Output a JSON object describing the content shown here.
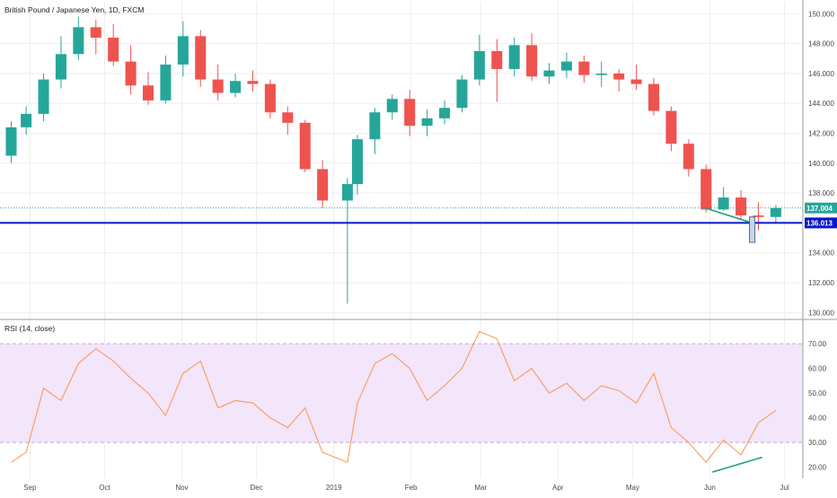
{
  "chart_data": [
    {
      "type": "candlestick",
      "title": "British Pound / Japanese Yen, 1D, FXCM",
      "ylim": [
        129.6,
        150.8
      ],
      "y_ticks": [
        "130.000",
        "132.000",
        "134.000",
        "136.000",
        "138.000",
        "140.000",
        "142.000",
        "144.000",
        "146.000",
        "148.000",
        "150.000"
      ],
      "x_tick_labels": [
        "Sep",
        "Oct",
        "Nov",
        "Dec",
        "2019",
        "Feb",
        "Mar",
        "Apr",
        "May",
        "Jun",
        "Jul"
      ],
      "grid": true,
      "colors": {
        "up": "#26a69a",
        "down": "#ef5350",
        "support": "#0b16c9",
        "divergence": "#1ba37c",
        "last_price": "#26a69a",
        "support_tag": "#0b16c9"
      },
      "last_price": {
        "value": 137.0,
        "label": "137.004"
      },
      "support_level": {
        "value": 136.0,
        "label": "136.013"
      },
      "series": [
        {
          "name": "GBPJPY",
          "x": [
            "2018-08-21",
            "2018-08-27",
            "2018-09-03",
            "2018-09-10",
            "2018-09-17",
            "2018-09-24",
            "2018-10-01",
            "2018-10-08",
            "2018-10-15",
            "2018-10-22",
            "2018-10-29",
            "2018-11-05",
            "2018-11-12",
            "2018-11-19",
            "2018-11-26",
            "2018-12-03",
            "2018-12-10",
            "2018-12-17",
            "2018-12-24",
            "2019-01-03",
            "2019-01-07",
            "2019-01-14",
            "2019-01-21",
            "2019-01-28",
            "2019-02-04",
            "2019-02-11",
            "2019-02-18",
            "2019-02-25",
            "2019-03-04",
            "2019-03-11",
            "2019-03-18",
            "2019-03-25",
            "2019-04-01",
            "2019-04-08",
            "2019-04-15",
            "2019-04-22",
            "2019-04-29",
            "2019-05-06",
            "2019-05-13",
            "2019-05-20",
            "2019-05-27",
            "2019-06-03",
            "2019-06-10",
            "2019-06-17",
            "2019-06-24"
          ],
          "open": [
            140.5,
            142.4,
            143.3,
            145.6,
            147.3,
            149.1,
            148.4,
            146.8,
            145.2,
            144.2,
            146.6,
            148.5,
            145.6,
            144.7,
            145.5,
            145.3,
            143.4,
            142.7,
            139.6,
            137.5,
            138.6,
            141.6,
            143.4,
            144.3,
            142.5,
            143.0,
            143.7,
            145.6,
            147.5,
            146.3,
            147.9,
            145.8,
            146.2,
            146.8,
            145.9,
            146.0,
            145.6,
            145.3,
            143.5,
            141.3,
            139.6,
            136.9,
            137.7,
            136.5,
            136.4
          ],
          "high": [
            142.8,
            143.8,
            146.0,
            148.5,
            149.8,
            149.6,
            149.3,
            147.9,
            146.1,
            147.2,
            149.5,
            148.9,
            146.6,
            146.0,
            146.2,
            145.6,
            143.8,
            142.9,
            140.2,
            139.0,
            141.9,
            143.7,
            144.6,
            144.9,
            143.6,
            144.2,
            145.9,
            148.6,
            148.3,
            148.4,
            148.7,
            146.7,
            147.4,
            147.2,
            146.8,
            146.3,
            146.6,
            145.7,
            143.8,
            141.6,
            139.9,
            138.4,
            138.2,
            137.4,
            137.2
          ],
          "low": [
            140.0,
            141.9,
            142.8,
            145.0,
            146.9,
            147.3,
            146.5,
            144.6,
            143.9,
            144.0,
            145.8,
            145.1,
            144.2,
            144.4,
            144.8,
            143.0,
            141.9,
            139.4,
            137.0,
            130.6,
            137.9,
            140.6,
            142.9,
            141.8,
            141.8,
            142.6,
            143.4,
            145.2,
            144.1,
            145.8,
            145.5,
            145.3,
            145.7,
            145.4,
            145.1,
            144.8,
            144.9,
            143.2,
            140.8,
            139.1,
            136.7,
            136.8,
            136.3,
            135.5,
            136.0
          ],
          "close": [
            142.4,
            143.3,
            145.6,
            147.3,
            149.1,
            148.4,
            146.8,
            145.2,
            144.2,
            146.6,
            148.5,
            145.6,
            144.7,
            145.5,
            145.3,
            143.4,
            142.7,
            139.6,
            137.5,
            138.6,
            141.6,
            143.4,
            144.3,
            142.5,
            143.0,
            143.7,
            145.6,
            147.5,
            146.3,
            147.9,
            145.8,
            146.2,
            146.8,
            145.9,
            146.0,
            145.6,
            145.3,
            143.5,
            141.3,
            139.6,
            136.9,
            137.7,
            136.5,
            136.4,
            137.0
          ]
        }
      ]
    },
    {
      "type": "line",
      "title": "RSI (14, close)",
      "ylim": [
        15.5,
        79.5
      ],
      "y_ticks": [
        "20.00",
        "30.00",
        "40.00",
        "50.00",
        "60.00",
        "70.00"
      ],
      "band": [
        30,
        70
      ],
      "colors": {
        "line": "#f7954f",
        "band_fill": "#f3e5fa",
        "band_edge": "#c9a3d8",
        "divergence": "#1ba37c"
      },
      "series": [
        {
          "name": "RSI",
          "x": [
            "2018-08-21",
            "2018-08-27",
            "2018-09-03",
            "2018-09-10",
            "2018-09-17",
            "2018-09-24",
            "2018-10-01",
            "2018-10-08",
            "2018-10-15",
            "2018-10-22",
            "2018-10-29",
            "2018-11-05",
            "2018-11-12",
            "2018-11-19",
            "2018-11-26",
            "2018-12-03",
            "2018-12-10",
            "2018-12-17",
            "2018-12-24",
            "2019-01-03",
            "2019-01-07",
            "2019-01-14",
            "2019-01-21",
            "2019-01-28",
            "2019-02-04",
            "2019-02-11",
            "2019-02-18",
            "2019-02-25",
            "2019-03-04",
            "2019-03-11",
            "2019-03-18",
            "2019-03-25",
            "2019-04-01",
            "2019-04-08",
            "2019-04-15",
            "2019-04-22",
            "2019-04-29",
            "2019-05-06",
            "2019-05-13",
            "2019-05-20",
            "2019-05-27",
            "2019-06-03",
            "2019-06-10",
            "2019-06-17",
            "2019-06-24"
          ],
          "values": [
            22,
            26,
            52,
            47,
            62,
            68,
            63,
            56,
            50,
            41,
            58,
            63,
            44,
            47,
            46,
            40,
            36,
            44,
            26,
            22,
            46,
            62,
            66,
            60,
            47,
            53,
            60,
            75,
            72,
            55,
            60,
            50,
            54,
            47,
            53,
            51,
            46,
            58,
            36,
            30,
            22,
            31,
            25,
            38,
            43
          ]
        }
      ]
    }
  ],
  "rsi_panel": {
    "label": "RSI (14, close)"
  }
}
